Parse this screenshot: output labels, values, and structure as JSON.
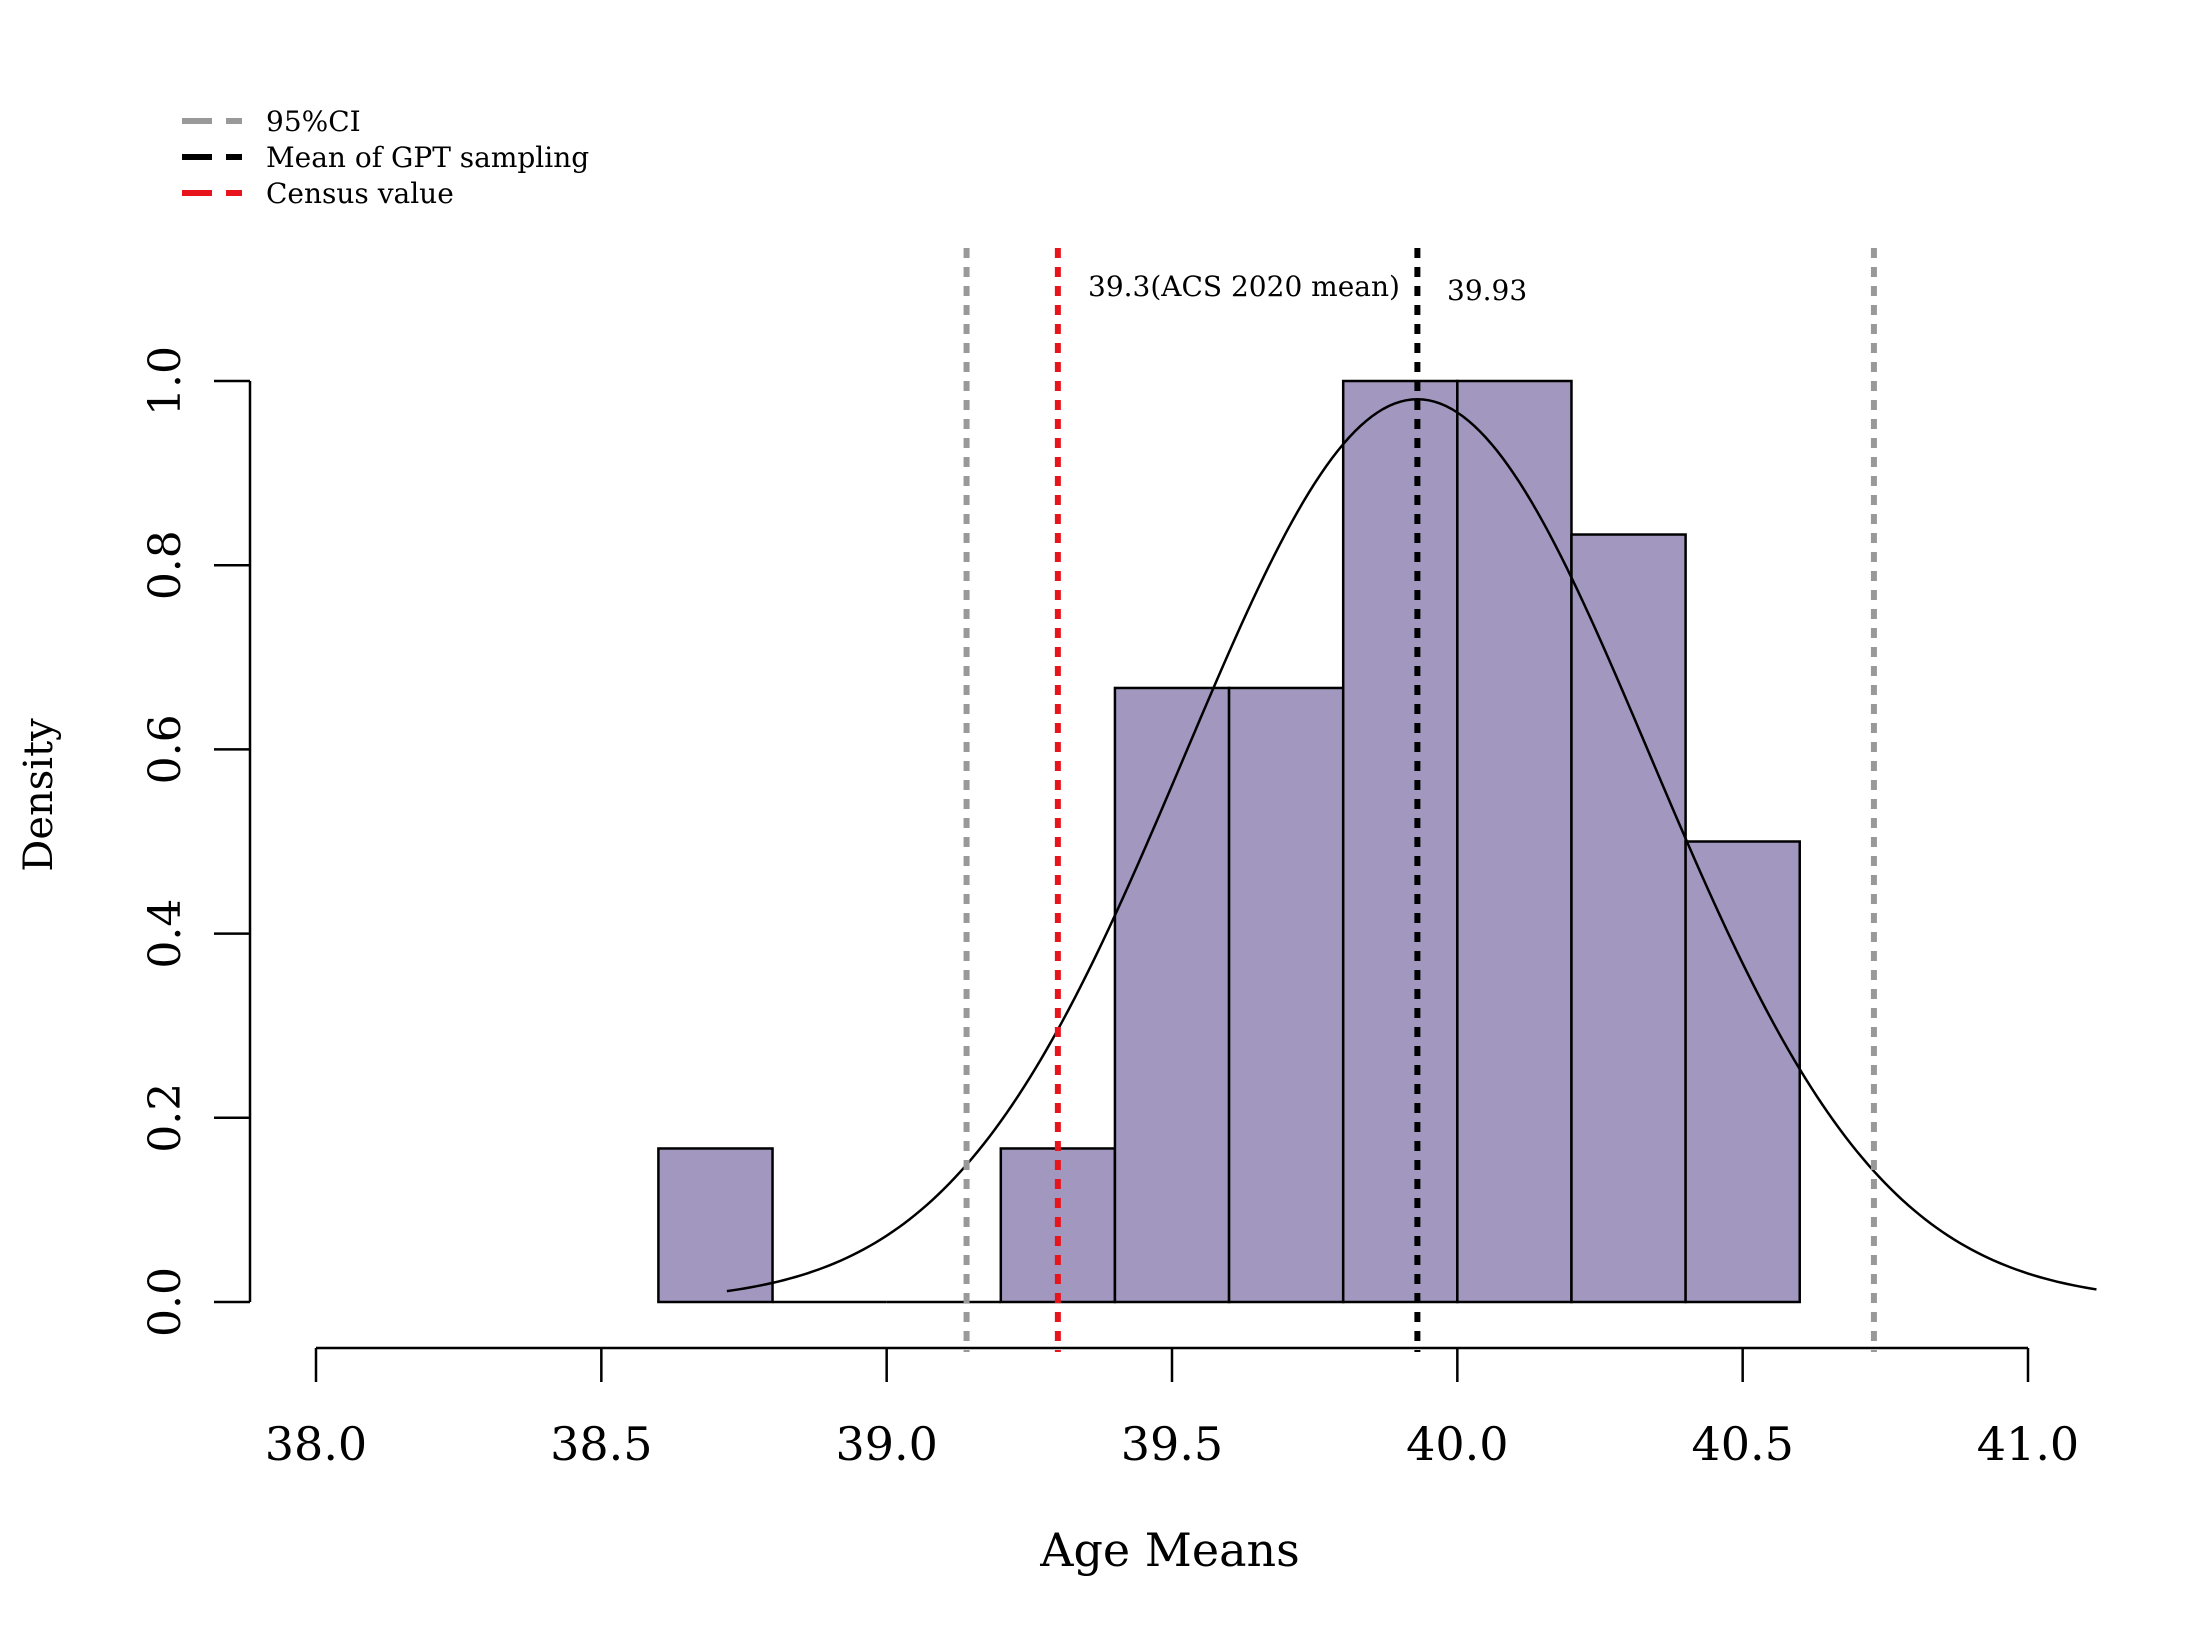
{
  "chart_data": {
    "type": "bar",
    "subtype": "histogram",
    "xlabel": "Age Means",
    "ylabel": "Density",
    "xlim": [
      38.0,
      41.0
    ],
    "ylim": [
      0.0,
      1.0
    ],
    "x_ticks": [
      38.0,
      38.5,
      39.0,
      39.5,
      40.0,
      40.5,
      41.0
    ],
    "x_tick_labels": [
      "38.0",
      "38.5",
      "39.0",
      "39.5",
      "40.0",
      "40.5",
      "41.0"
    ],
    "y_ticks": [
      0.0,
      0.2,
      0.4,
      0.6,
      0.8,
      1.0
    ],
    "y_tick_labels": [
      "0.0",
      "0.2",
      "0.4",
      "0.6",
      "0.8",
      "1.0"
    ],
    "bins": [
      {
        "start": 38.6,
        "end": 38.8,
        "density": 0.1667
      },
      {
        "start": 38.8,
        "end": 39.0,
        "density": 0.0
      },
      {
        "start": 39.0,
        "end": 39.2,
        "density": 0.0
      },
      {
        "start": 39.2,
        "end": 39.4,
        "density": 0.1667
      },
      {
        "start": 39.4,
        "end": 39.6,
        "density": 0.6667
      },
      {
        "start": 39.6,
        "end": 39.8,
        "density": 0.6667
      },
      {
        "start": 39.8,
        "end": 40.0,
        "density": 1.0
      },
      {
        "start": 40.0,
        "end": 40.2,
        "density": 1.0
      },
      {
        "start": 40.2,
        "end": 40.4,
        "density": 0.8333
      },
      {
        "start": 40.4,
        "end": 40.6,
        "density": 0.5
      }
    ],
    "bar_color": "#A297BF",
    "normal_curve": {
      "mean": 39.93,
      "sd": 0.407,
      "x_from": 38.72,
      "x_to": 41.12,
      "color": "#000000"
    },
    "reference_lines": [
      {
        "name": "ci-lower",
        "x": 39.14,
        "color": "#999999"
      },
      {
        "name": "ci-upper",
        "x": 40.73,
        "color": "#999999"
      },
      {
        "name": "census",
        "x": 39.3,
        "color": "#E8141B",
        "label": "39.3(ACS 2020 mean)"
      },
      {
        "name": "gpt-mean",
        "x": 39.93,
        "color": "#000000",
        "label": "39.93"
      }
    ],
    "legend": {
      "position": "top-left",
      "entries": [
        {
          "label": "95%CI",
          "color": "#999999"
        },
        {
          "label": "Mean of GPT sampling",
          "color": "#000000"
        },
        {
          "label": "Census value",
          "color": "#E8141B"
        }
      ]
    }
  }
}
